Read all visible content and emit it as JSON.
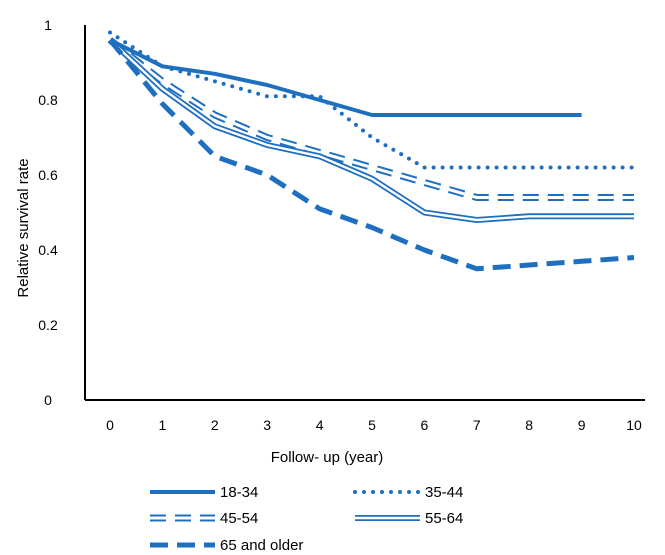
{
  "chart_data": {
    "type": "line",
    "title": "",
    "xlabel": "Follow- up (year)",
    "ylabel": "Relative survival rate",
    "x": [
      0,
      1,
      2,
      3,
      4,
      5,
      6,
      7,
      8,
      9,
      10
    ],
    "xlim": [
      0,
      10
    ],
    "ylim": [
      0,
      1
    ],
    "yticks": [
      "0",
      "0.2",
      "0.4",
      "0.6",
      "0.8",
      "1"
    ],
    "xticks": [
      "0",
      "1",
      "2",
      "3",
      "4",
      "5",
      "6",
      "7",
      "8",
      "9",
      "10"
    ],
    "grid": false,
    "legend_position": "bottom",
    "color": "#1f6fc0",
    "series": [
      {
        "name": "18-34",
        "style": "solid-thick",
        "values": [
          0.96,
          0.89,
          0.87,
          0.84,
          0.8,
          0.76,
          0.76,
          0.76,
          0.76,
          0.76,
          null
        ]
      },
      {
        "name": "35-44",
        "style": "dotted",
        "values": [
          0.98,
          0.89,
          0.85,
          0.81,
          0.81,
          0.7,
          0.62,
          0.62,
          0.62,
          0.62,
          0.62
        ]
      },
      {
        "name": "45-54",
        "style": "double-dashed",
        "values": [
          0.96,
          0.85,
          0.76,
          0.7,
          0.66,
          0.62,
          0.58,
          0.54,
          0.54,
          0.54,
          0.54
        ]
      },
      {
        "name": "55-64",
        "style": "double-solid",
        "values": [
          0.96,
          0.83,
          0.73,
          0.68,
          0.65,
          0.59,
          0.5,
          0.48,
          0.49,
          0.49,
          0.49
        ]
      },
      {
        "name": "65 and older",
        "style": "dashed-thick",
        "values": [
          0.96,
          0.79,
          0.65,
          0.6,
          0.51,
          0.46,
          0.4,
          0.35,
          0.36,
          0.37,
          0.38
        ]
      }
    ]
  }
}
